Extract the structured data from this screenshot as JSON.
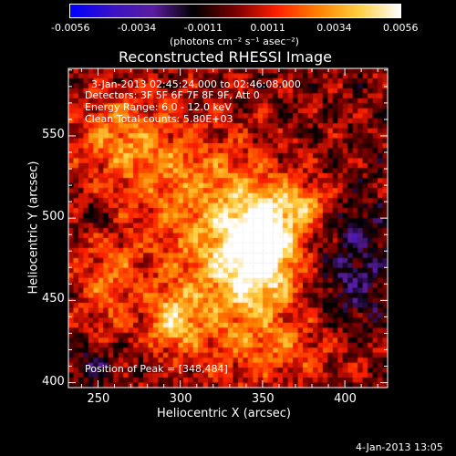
{
  "chart_data": {
    "type": "heatmap",
    "title": "Reconstructed RHESSI Image",
    "xlabel": "Heliocentric X (arcsec)",
    "ylabel": "Heliocentric Y (arcsec)",
    "xlim": [
      232,
      426
    ],
    "ylim": [
      397,
      591
    ],
    "x_ticks": [
      250,
      300,
      350,
      400
    ],
    "y_ticks": [
      400,
      450,
      500,
      550
    ],
    "colorbar": {
      "ticks": [
        "-0.0056",
        "-0.0034",
        "-0.0011",
        "0.0011",
        "0.0034",
        "0.0056"
      ],
      "range": [
        -0.0056,
        0.0056
      ],
      "unit_label": "(photons cm⁻² s⁻¹ asec⁻²)",
      "colormap": [
        "#0000ff",
        "#3a12c8",
        "#5a1ea0",
        "#000000",
        "#7a0000",
        "#ff2000",
        "#ff8000",
        "#ffd040",
        "#ffffff"
      ]
    },
    "annotations": [
      "3-Jan-2013 02:45:24.000 to 02:46:08.000",
      "Detectors: 3F 5F 6F 7F 8F 9F, Att 0",
      "Energy Range: 6.0 - 12.0 keV",
      "Clean    Total counts: 5.80E+03"
    ],
    "peak_label": "Position of Peak = [348,484]",
    "peak": [
      348,
      484
    ],
    "sources": [
      {
        "x": 348,
        "y": 484,
        "amp": 0.0056,
        "sx": 15,
        "sy": 22
      },
      {
        "x": 330,
        "y": 470,
        "amp": 0.0032,
        "sx": 30,
        "sy": 35
      },
      {
        "x": 296,
        "y": 438,
        "amp": 0.0034,
        "sx": 10,
        "sy": 12
      },
      {
        "x": 262,
        "y": 550,
        "amp": 0.0025,
        "sx": 20,
        "sy": 18
      },
      {
        "x": 375,
        "y": 508,
        "amp": 0.0028,
        "sx": 12,
        "sy": 10
      },
      {
        "x": 256,
        "y": 460,
        "amp": 0.0022,
        "sx": 14,
        "sy": 22
      },
      {
        "x": 300,
        "y": 525,
        "amp": 0.002,
        "sx": 30,
        "sy": 25
      },
      {
        "x": 360,
        "y": 420,
        "amp": 0.0016,
        "sx": 30,
        "sy": 14
      },
      {
        "x": 405,
        "y": 470,
        "amp": -0.002,
        "sx": 18,
        "sy": 30
      },
      {
        "x": 245,
        "y": 410,
        "amp": -0.0015,
        "sx": 12,
        "sy": 10
      },
      {
        "x": 250,
        "y": 500,
        "amp": -0.0012,
        "sx": 10,
        "sy": 8
      }
    ]
  },
  "footer_timestamp": "4-Jan-2013 13:05"
}
